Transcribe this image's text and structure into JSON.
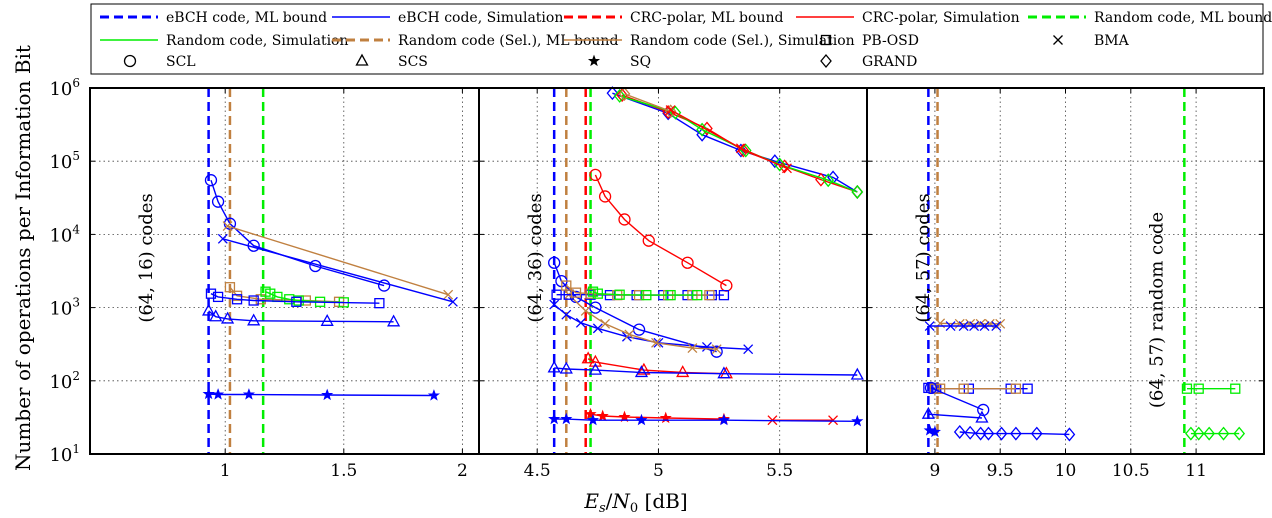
{
  "chart_data": {
    "type": "line",
    "ylabel": "Number of operations per Information Bit",
    "xlabel": "E_s/N_0 [dB]",
    "y_scale": "log",
    "ylim": [
      10,
      1000000
    ],
    "y_ticks": [
      {
        "value": 10,
        "exp": "1"
      },
      {
        "value": 100,
        "exp": "2"
      },
      {
        "value": 1000,
        "exp": "3"
      },
      {
        "value": 10000,
        "exp": "4"
      },
      {
        "value": 100000,
        "exp": "5"
      },
      {
        "value": 1000000,
        "exp": "6"
      }
    ],
    "grid": true,
    "legend_position": "top",
    "colors": {
      "ebch": "#0000ff",
      "crc_polar": "#ff0000",
      "random": "#00ee00",
      "random_sel": "#c08040"
    },
    "legend": [
      {
        "label": "eBCH code,  ML bound",
        "style": "dashed",
        "color": "#0000ff"
      },
      {
        "label": "eBCH code,  Simulation",
        "style": "solid",
        "color": "#0000ff"
      },
      {
        "label": "CRC-polar,  ML bound",
        "style": "dashed",
        "color": "#ff0000"
      },
      {
        "label": "CRC-polar,  Simulation",
        "style": "solid",
        "color": "#ff0000"
      },
      {
        "label": "Random code,  ML bound",
        "style": "dashed",
        "color": "#00ee00"
      },
      {
        "label": "Random code,  Simulation",
        "style": "solid",
        "color": "#00ee00"
      },
      {
        "label": "Random code (Sel.),  ML bound",
        "style": "dashed",
        "color": "#c08040"
      },
      {
        "label": "Random code (Sel.),  Simulation",
        "style": "solid",
        "color": "#c08040"
      },
      {
        "label": "PB-OSD",
        "marker": "square"
      },
      {
        "label": "BMA",
        "marker": "x"
      },
      {
        "label": "SCL",
        "marker": "circle"
      },
      {
        "label": "SCS",
        "marker": "triangle"
      },
      {
        "label": "SQ",
        "marker": "star"
      },
      {
        "label": "GRAND",
        "marker": "diamond"
      }
    ],
    "panels": [
      {
        "code_label": "(64, 16)  codes",
        "xlim": [
          0.43,
          2.07
        ],
        "x_ticks": [
          "1",
          "1.5",
          "2"
        ],
        "bounds": [
          {
            "color": "#0000ff",
            "x": 0.93
          },
          {
            "color": "#c08040",
            "x": 1.02
          },
          {
            "color": "#00ee00",
            "x": 1.16
          }
        ],
        "series": [
          {
            "color": "#0000ff",
            "marker": "circle",
            "x": [
              0.94,
              0.97,
              1.02,
              1.12,
              1.38,
              1.67
            ],
            "y": [
              55000,
              28000,
              14000,
              7000,
              3700,
              2000
            ]
          },
          {
            "color": "#c08040",
            "marker": "x",
            "x": [
              1.01,
              1.94
            ],
            "y": [
              13000,
              1500
            ]
          },
          {
            "color": "#0000ff",
            "marker": "x",
            "x": [
              0.99,
              1.96
            ],
            "y": [
              8700,
              1200
            ]
          },
          {
            "color": "#c08040",
            "marker": "square",
            "x": [
              1.02,
              1.05,
              1.15,
              1.34,
              1.48
            ],
            "y": [
              1900,
              1450,
              1300,
              1250,
              1200
            ]
          },
          {
            "color": "#00ee00",
            "marker": "square",
            "x": [
              1.17,
              1.19,
              1.22,
              1.27,
              1.31,
              1.4,
              1.5
            ],
            "y": [
              1650,
              1550,
              1400,
              1300,
              1250,
              1200,
              1180
            ]
          },
          {
            "color": "#0000ff",
            "marker": "square",
            "x": [
              0.94,
              0.97,
              1.05,
              1.12,
              1.3,
              1.65
            ],
            "y": [
              1550,
              1400,
              1300,
              1250,
              1200,
              1150
            ]
          },
          {
            "color": "#0000ff",
            "marker": "triangle",
            "x": [
              0.93,
              0.96,
              1.01,
              1.12,
              1.43,
              1.71
            ],
            "y": [
              900,
              750,
              700,
              660,
              650,
              640
            ]
          },
          {
            "color": "#0000ff",
            "marker": "star",
            "x": [
              0.93,
              0.97,
              1.1,
              1.43,
              1.88
            ],
            "y": [
              66,
              65,
              65,
              64,
              63
            ]
          }
        ]
      },
      {
        "code_label": "(64, 36)  codes",
        "xlim": [
          4.26,
          5.86
        ],
        "x_ticks": [
          "4.5",
          "5",
          "5.5"
        ],
        "bounds": [
          {
            "color": "#0000ff",
            "x": 4.57
          },
          {
            "color": "#c08040",
            "x": 4.62
          },
          {
            "color": "#ff0000",
            "x": 4.7
          },
          {
            "color": "#00ee00",
            "x": 4.72
          }
        ],
        "series": [
          {
            "color": "#0000ff",
            "marker": "diamond",
            "x": [
              4.81,
              5.04,
              5.18,
              5.34,
              5.48,
              5.72,
              5.82
            ],
            "y": [
              850000,
              450000,
              230000,
              140000,
              100000,
              60000,
              38000
            ]
          },
          {
            "color": "#ff0000",
            "marker": "diamond",
            "x": [
              4.85,
              5.04,
              5.2,
              5.35,
              5.52,
              5.67,
              5.82
            ],
            "y": [
              800000,
              470000,
              280000,
              140000,
              85000,
              56000,
              38000
            ]
          },
          {
            "color": "#00ee00",
            "marker": "diamond",
            "x": [
              4.84,
              5.07,
              5.18,
              5.36,
              5.5,
              5.7,
              5.82
            ],
            "y": [
              780000,
              460000,
              270000,
              140000,
              90000,
              55000,
              38000
            ]
          },
          {
            "color": "#c08040",
            "marker": "diamond",
            "x": [
              4.86,
              5.05
            ],
            "y": [
              830000,
              480000
            ]
          },
          {
            "color": "#ff0000",
            "marker": "x",
            "x": [
              5.05,
              5.34,
              5.53
            ],
            "y": [
              500000,
              150000,
              80000
            ]
          },
          {
            "color": "#ff0000",
            "marker": "circle",
            "x": [
              4.74,
              4.78,
              4.86,
              4.96,
              5.12,
              5.28
            ],
            "y": [
              65000,
              33000,
              16000,
              8200,
              4100,
              2000
            ]
          },
          {
            "color": "#0000ff",
            "marker": "circle",
            "x": [
              4.57,
              4.6,
              4.66,
              4.74,
              4.92,
              5.24
            ],
            "y": [
              4100,
              2300,
              1400,
              1000,
              500,
              250
            ]
          },
          {
            "color": "#0000ff",
            "marker": "x",
            "x": [
              4.57,
              4.62,
              4.68,
              4.75,
              4.87,
              5.0,
              5.2,
              5.37
            ],
            "y": [
              1100,
              800,
              620,
              520,
              400,
              330,
              290,
              270
            ]
          },
          {
            "color": "#c08040",
            "marker": "x",
            "x": [
              4.63,
              4.7,
              4.78,
              4.88,
              4.99,
              5.14,
              5.24
            ],
            "y": [
              1500,
              900,
              600,
              430,
              330,
              280,
              270
            ]
          },
          {
            "color": "#0000ff",
            "marker": "square",
            "x": [
              4.58,
              4.63,
              4.72,
              4.8,
              4.91,
              5.02,
              5.12,
              5.22,
              5.27
            ],
            "y": [
              1500,
              1500,
              1500,
              1480,
              1480,
              1480,
              1480,
              1480,
              1480
            ]
          },
          {
            "color": "#c08040",
            "marker": "square",
            "x": [
              4.62,
              4.66,
              4.72,
              4.83,
              4.92,
              5.04,
              5.14,
              5.21
            ],
            "y": [
              2000,
              1600,
              1550,
              1480,
              1480,
              1480,
              1480,
              1480
            ]
          },
          {
            "color": "#00ee00",
            "marker": "square",
            "x": [
              4.73,
              4.75,
              4.84,
              4.95,
              5.05,
              5.16
            ],
            "y": [
              1650,
              1550,
              1500,
              1480,
              1480,
              1480
            ]
          },
          {
            "color": "#ff0000",
            "marker": "triangle",
            "x": [
              4.71,
              4.74,
              4.94,
              5.1,
              5.28
            ],
            "y": [
              200,
              180,
              140,
              130,
              125
            ]
          },
          {
            "color": "#0000ff",
            "marker": "triangle",
            "x": [
              4.57,
              4.62,
              4.74,
              4.93,
              5.27,
              5.82
            ],
            "y": [
              150,
              145,
              140,
              130,
              125,
              120
            ]
          },
          {
            "color": "#ff0000",
            "marker": "star",
            "x": [
              4.72,
              4.77,
              4.86,
              5.03,
              5.27
            ],
            "y": [
              35,
              33,
              32,
              31,
              30
            ]
          },
          {
            "color": "#ff0000",
            "marker": "x",
            "x": [
              5.47,
              5.72
            ],
            "y": [
              29,
              29
            ]
          },
          {
            "color": "#0000ff",
            "marker": "star",
            "x": [
              4.57,
              4.62,
              4.73,
              4.93,
              5.27,
              5.82
            ],
            "y": [
              30,
              30,
              29,
              29,
              29,
              28
            ]
          }
        ]
      },
      {
        "code_label": "(64, 57)  codes",
        "code_label_2": "(64, 57)  random code",
        "xlim": [
          8.48,
          11.52
        ],
        "x_ticks": [
          "9",
          "9.5",
          "10",
          "10.5",
          "11"
        ],
        "bounds": [
          {
            "color": "#0000ff",
            "x": 8.95
          },
          {
            "color": "#c08040",
            "x": 9.02
          },
          {
            "color": "#00ee00",
            "x": 10.91
          }
        ],
        "series": [
          {
            "color": "#c08040",
            "marker": "x",
            "x": [
              9.04,
              9.19,
              9.27,
              9.35,
              9.42,
              9.5
            ],
            "y": [
              610,
              600,
              600,
              600,
              600,
              600
            ]
          },
          {
            "color": "#0000ff",
            "marker": "x",
            "x": [
              8.96,
              9.12,
              9.22,
              9.3,
              9.38,
              9.47
            ],
            "y": [
              560,
              560,
              560,
              560,
              560,
              560
            ]
          },
          {
            "color": "#0000ff",
            "marker": "square",
            "x": [
              8.95,
              8.99,
              9.01,
              9.26,
              9.58,
              9.71
            ],
            "y": [
              80,
              80,
              78,
              78,
              78,
              78
            ]
          },
          {
            "color": "#c08040",
            "marker": "square",
            "x": [
              9.0,
              9.04,
              9.22,
              9.62
            ],
            "y": [
              78,
              78,
              78,
              78
            ]
          },
          {
            "color": "#0000ff",
            "marker": "circle",
            "x": [
              8.97,
              9.37
            ],
            "y": [
              80,
              40
            ]
          },
          {
            "color": "#0000ff",
            "marker": "triangle",
            "x": [
              8.95,
              9.36
            ],
            "y": [
              35,
              31
            ]
          },
          {
            "color": "#0000ff",
            "marker": "star",
            "x": [
              8.96,
              9.0
            ],
            "y": [
              21,
              20
            ]
          },
          {
            "color": "#0000ff",
            "marker": "diamond",
            "x": [
              9.19,
              9.27,
              9.35,
              9.41,
              9.51,
              9.62,
              9.78,
              10.03
            ],
            "y": [
              20,
              19.5,
              19,
              19,
              19,
              19,
              19,
              18.5
            ]
          },
          {
            "color": "#00ee00",
            "marker": "square",
            "x": [
              10.93,
              11.02,
              11.3
            ],
            "y": [
              78,
              78,
              78
            ]
          },
          {
            "color": "#00ee00",
            "marker": "diamond",
            "x": [
              10.96,
              11.02,
              11.1,
              11.21,
              11.33
            ],
            "y": [
              19,
              19,
              19,
              19,
              19
            ]
          }
        ]
      }
    ]
  }
}
